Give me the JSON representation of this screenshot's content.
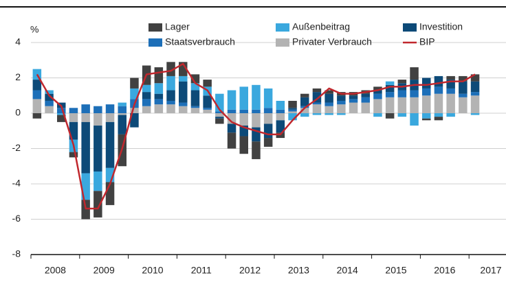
{
  "chart_data": {
    "type": "bar",
    "stacked": true,
    "y_axis_label": "%",
    "categories": [
      "2008",
      null,
      null,
      null,
      "2009",
      null,
      null,
      null,
      "2010",
      null,
      null,
      null,
      "2011",
      null,
      null,
      null,
      "2012",
      null,
      null,
      null,
      "2013",
      null,
      null,
      null,
      "2014",
      null,
      null,
      null,
      "2015",
      null,
      null,
      null,
      "2016",
      null,
      null,
      null,
      "2017"
    ],
    "series": [
      {
        "name": "Privater Verbrauch",
        "color": "#b3b3b3",
        "values": [
          0.8,
          0.4,
          0,
          -0.5,
          -0.5,
          -0.7,
          -0.5,
          -0.1,
          0.3,
          0.4,
          0.5,
          0.5,
          0.4,
          0.3,
          0.2,
          -0.2,
          -0.6,
          -0.7,
          -0.8,
          -0.6,
          -0.4,
          0.1,
          0.3,
          0.5,
          0.4,
          0.5,
          0.6,
          0.6,
          0.8,
          0.9,
          0.9,
          0.9,
          1.0,
          1.1,
          1.1,
          0.9,
          1.0
        ]
      },
      {
        "name": "Staatsverbrauch",
        "color": "#1d6fb8",
        "values": [
          0.5,
          0.3,
          0.3,
          0.3,
          0.5,
          0.4,
          0.5,
          0.4,
          0.5,
          0.4,
          0.3,
          0.2,
          0.2,
          0.1,
          0.1,
          0.1,
          0.2,
          0.2,
          0.2,
          0.3,
          0.2,
          0.1,
          0.1,
          0.1,
          0.2,
          0.2,
          0.2,
          0.3,
          0.3,
          0.3,
          0.4,
          0.4,
          0.4,
          0.4,
          0.3,
          0.2,
          0.2
        ]
      },
      {
        "name": "Investition",
        "color": "#0d4a78",
        "values": [
          0.6,
          0.4,
          0.3,
          -1.0,
          -2.9,
          -2.6,
          -2.6,
          -1.1,
          -0.8,
          0.4,
          0.3,
          0.6,
          1.2,
          0.9,
          0.7,
          -0.1,
          -0.5,
          -0.6,
          -0.8,
          -0.8,
          -0.7,
          0.1,
          0.5,
          0.6,
          0.5,
          0.3,
          0.2,
          0.2,
          0.2,
          0.4,
          0.4,
          0.6,
          0.6,
          0.6,
          0.5,
          0.7,
          0.6
        ]
      },
      {
        "name": "Außenbeitrag",
        "color": "#3aa8de",
        "values": [
          0.6,
          0.2,
          -0.1,
          -0.7,
          -1.5,
          -1.1,
          -0.8,
          0.2,
          0.6,
          0.4,
          0.6,
          0.8,
          0.3,
          0.4,
          0.5,
          1.0,
          1.1,
          1.3,
          1.4,
          1.1,
          0.5,
          -0.4,
          -0.2,
          -0.1,
          -0.1,
          -0.1,
          0,
          0,
          -0.2,
          0.2,
          -0.2,
          -0.7,
          -0.3,
          -0.2,
          -0.2,
          0,
          -0.1
        ]
      },
      {
        "name": "Lager",
        "color": "#414141",
        "values": [
          -0.3,
          0,
          -0.4,
          -0.3,
          -1.1,
          -1.5,
          -1.3,
          -1.8,
          0.6,
          1.1,
          0.9,
          0.8,
          0.8,
          0.5,
          0.4,
          -0.3,
          -0.9,
          -1.0,
          -1.0,
          -0.5,
          -0.3,
          0.4,
          0.2,
          0.2,
          0.2,
          0.2,
          0.2,
          0.2,
          0.2,
          -0.3,
          0.2,
          0.7,
          -0.1,
          -0.2,
          0.2,
          0.3,
          0.4
        ]
      },
      {
        "name": "BIP",
        "color": "#c0272d",
        "type": "line",
        "values": [
          2.2,
          1.0,
          0.4,
          -1.8,
          -5.4,
          -5.4,
          -4.0,
          -2.0,
          0.5,
          2.2,
          2.3,
          2.4,
          2.8,
          1.7,
          1.3,
          0.2,
          -0.5,
          -0.8,
          -1.0,
          -1.2,
          -1.2,
          -0.4,
          0.3,
          0.8,
          1.4,
          1.1,
          1.1,
          1.2,
          1.3,
          1.5,
          1.5,
          1.6,
          1.6,
          1.7,
          1.8,
          1.8,
          2.2
        ]
      }
    ],
    "ylim": [
      -8,
      4
    ],
    "yticks": [
      -8,
      -6,
      -4,
      -2,
      0,
      2,
      4
    ],
    "grid": true,
    "legend": "top"
  }
}
